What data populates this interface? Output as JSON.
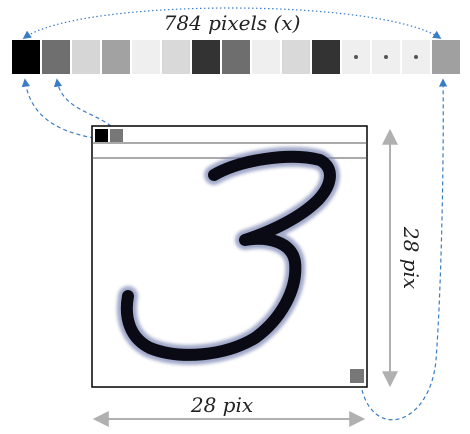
{
  "labels": {
    "vector_length": "784 pixels (x)",
    "width": "28 pix",
    "height": "28 pix"
  },
  "vector_cells": [
    {
      "kind": "pixel",
      "fill": "#000000"
    },
    {
      "kind": "pixel",
      "fill": "#6f6f6f"
    },
    {
      "kind": "pixel",
      "fill": "#d6d6d6"
    },
    {
      "kind": "pixel",
      "fill": "#a2a2a2"
    },
    {
      "kind": "pixel",
      "fill": "#efefef"
    },
    {
      "kind": "pixel",
      "fill": "#d9d9d9"
    },
    {
      "kind": "pixel",
      "fill": "#333333"
    },
    {
      "kind": "pixel",
      "fill": "#6e6e6e"
    },
    {
      "kind": "pixel",
      "fill": "#efefef"
    },
    {
      "kind": "pixel",
      "fill": "#d9d9d9"
    },
    {
      "kind": "pixel",
      "fill": "#333333"
    },
    {
      "kind": "ellipsis",
      "fill": "#efefef"
    },
    {
      "kind": "ellipsis",
      "fill": "#efefef"
    },
    {
      "kind": "ellipsis",
      "fill": "#efefef"
    },
    {
      "kind": "pixel",
      "fill": "#a0a0a0"
    }
  ],
  "digit": "3",
  "colors": {
    "arrow_blue": "#3b7dc4",
    "dimension_gray": "#b0b0b0",
    "ink": "#0a0a14"
  }
}
